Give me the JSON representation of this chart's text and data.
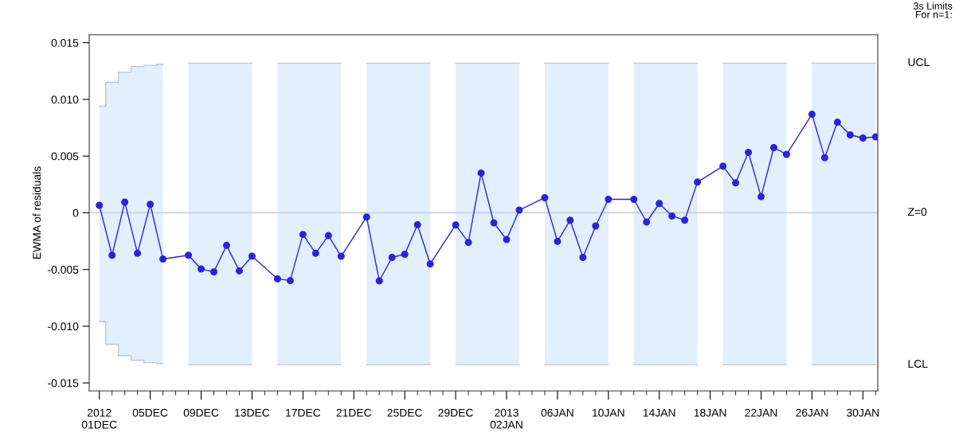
{
  "chart_data": {
    "type": "line",
    "ylabel": "EWMA of residuals",
    "x": [
      "2012-12-01",
      "2012-12-02",
      "2012-12-03",
      "2012-12-04",
      "2012-12-05",
      "2012-12-06",
      "2012-12-08",
      "2012-12-09",
      "2012-12-10",
      "2012-12-11",
      "2012-12-12",
      "2012-12-13",
      "2012-12-15",
      "2012-12-16",
      "2012-12-17",
      "2012-12-18",
      "2012-12-19",
      "2012-12-20",
      "2012-12-22",
      "2012-12-23",
      "2012-12-24",
      "2012-12-25",
      "2012-12-26",
      "2012-12-27",
      "2012-12-29",
      "2012-12-30",
      "2012-12-31",
      "2013-01-01",
      "2013-01-02",
      "2013-01-03",
      "2013-01-05",
      "2013-01-06",
      "2013-01-07",
      "2013-01-08",
      "2013-01-09",
      "2013-01-10",
      "2013-01-12",
      "2013-01-13",
      "2013-01-14",
      "2013-01-15",
      "2013-01-16",
      "2013-01-17",
      "2013-01-19",
      "2013-01-20",
      "2013-01-21",
      "2013-01-22",
      "2013-01-23",
      "2013-01-24",
      "2013-01-26",
      "2013-01-27",
      "2013-01-28",
      "2013-01-29",
      "2013-01-30",
      "2013-01-31"
    ],
    "series": [
      {
        "color": "#2b22e0",
        "values": [
          0.00066,
          -0.00374,
          0.00094,
          -0.00357,
          0.00075,
          -0.00407,
          -0.00374,
          -0.00495,
          -0.00521,
          -0.00287,
          -0.00512,
          -0.00383,
          -0.00582,
          -0.00598,
          -0.00191,
          -0.00357,
          -0.00201,
          -0.00383,
          -0.00037,
          -0.006,
          -0.00393,
          -0.00365,
          -0.00105,
          -0.00451,
          -0.00107,
          -0.00261,
          0.00351,
          -0.00088,
          -0.00236,
          0.00024,
          0.00133,
          -0.00252,
          -0.00065,
          -0.00393,
          -0.00116,
          0.00119,
          0.00119,
          -0.00081,
          0.00082,
          -0.00028,
          -0.00065,
          0.00271,
          0.00411,
          0.00264,
          0.00533,
          0.00143,
          0.00575,
          0.00515,
          0.00869,
          0.00486,
          0.00799,
          0.00687,
          0.00659,
          0.00669
        ],
        "upper": [
          0.0094,
          0.0115,
          0.0124,
          0.0129,
          0.013,
          0.0131,
          0.0132,
          0.0132,
          0.0132,
          0.0132,
          0.0132,
          0.0132,
          0.0132,
          0.0132,
          0.0132,
          0.0132,
          0.0132,
          0.0132,
          0.0132,
          0.0132,
          0.0132,
          0.0132,
          0.0132,
          0.0132,
          0.0132,
          0.0132,
          0.0132,
          0.0132,
          0.0132,
          0.0132,
          0.0132,
          0.0132,
          0.0132,
          0.0132,
          0.0132,
          0.0132,
          0.0132,
          0.0132,
          0.0132,
          0.0132,
          0.0132,
          0.0132,
          0.0132,
          0.0132,
          0.0132,
          0.0132,
          0.0132,
          0.0132,
          0.0132,
          0.0132,
          0.0132,
          0.0132,
          0.0132,
          0.0132
        ],
        "lower": [
          -0.0096,
          -0.0116,
          -0.0126,
          -0.013,
          -0.0132,
          -0.0133,
          -0.0134,
          -0.0134,
          -0.0134,
          -0.0134,
          -0.0134,
          -0.0134,
          -0.0134,
          -0.0134,
          -0.0134,
          -0.0134,
          -0.0134,
          -0.0134,
          -0.0134,
          -0.0134,
          -0.0134,
          -0.0134,
          -0.0134,
          -0.0134,
          -0.0134,
          -0.0134,
          -0.0134,
          -0.0134,
          -0.0134,
          -0.0134,
          -0.0134,
          -0.0134,
          -0.0134,
          -0.0134,
          -0.0134,
          -0.0134,
          -0.0134,
          -0.0134,
          -0.0134,
          -0.0134,
          -0.0134,
          -0.0134,
          -0.0134,
          -0.0134,
          -0.0134,
          -0.0134,
          -0.0134,
          -0.0134,
          -0.0134,
          -0.0134,
          -0.0134,
          -0.0134,
          -0.0134,
          -0.0134
        ]
      },
      {
        "type": "step",
        "marker": "none",
        "color": "#b8c8e0",
        "values": [
          0.0094,
          0.0115,
          0.0124,
          0.0129,
          0.013,
          0.0131,
          0.0132,
          0.0132,
          0.0132,
          0.0132,
          0.0132,
          0.0132,
          0.0132,
          0.0132,
          0.0132,
          0.0132,
          0.0132,
          0.0132,
          0.0132,
          0.0132,
          0.0132,
          0.0132,
          0.0132,
          0.0132,
          0.0132,
          0.0132,
          0.0132,
          0.0132,
          0.0132,
          0.0132,
          0.0132,
          0.0132,
          0.0132,
          0.0132,
          0.0132,
          0.0132,
          0.0132,
          0.0132,
          0.0132,
          0.0132,
          0.0132,
          0.0132,
          0.0132,
          0.0132,
          0.0132,
          0.0132,
          0.0132,
          0.0132,
          0.0132,
          0.0132,
          0.0132,
          0.0132,
          0.0132,
          0.0132
        ]
      },
      {
        "type": "step",
        "marker": "none",
        "color": "#b8c8e0",
        "values": [
          -0.0096,
          -0.0116,
          -0.0126,
          -0.013,
          -0.0132,
          -0.0133,
          -0.0134,
          -0.0134,
          -0.0134,
          -0.0134,
          -0.0134,
          -0.0134,
          -0.0134,
          -0.0134,
          -0.0134,
          -0.0134,
          -0.0134,
          -0.0134,
          -0.0134,
          -0.0134,
          -0.0134,
          -0.0134,
          -0.0134,
          -0.0134,
          -0.0134,
          -0.0134,
          -0.0134,
          -0.0134,
          -0.0134,
          -0.0134,
          -0.0134,
          -0.0134,
          -0.0134,
          -0.0134,
          -0.0134,
          -0.0134,
          -0.0134,
          -0.0134,
          -0.0134,
          -0.0134,
          -0.0134,
          -0.0134,
          -0.0134,
          -0.0134,
          -0.0134,
          -0.0134,
          -0.0134,
          -0.0134,
          -0.0134,
          -0.0134,
          -0.0134,
          -0.0134,
          -0.0134,
          -0.0134
        ]
      }
    ],
    "marker": "circle",
    "line_style": "solid",
    "grid": false,
    "legend": false,
    "ylim": [
      -0.0157,
      0.0157
    ],
    "yticks": [
      0.015,
      {
        "value": 0.01,
        "label": "0.010"
      },
      0.005,
      0,
      -0.005,
      {
        "value": -0.01,
        "label": "-0.010"
      },
      -0.015
    ],
    "xlim": [
      "2012-11-30T05:00",
      "2013-01-31T04:00"
    ],
    "xticks": [
      {
        "value": "2012-12-01",
        "label": "2012\n01DEC"
      },
      {
        "value": "2012-12-02",
        "label": null
      },
      {
        "value": "2012-12-03",
        "label": null
      },
      {
        "value": "2012-12-04",
        "label": null
      },
      {
        "value": "2012-12-05",
        "label": "05DEC"
      },
      {
        "value": "2012-12-06",
        "label": null
      },
      {
        "value": "2012-12-07",
        "label": null
      },
      {
        "value": "2012-12-08",
        "label": null
      },
      {
        "value": "2012-12-09",
        "label": "09DEC"
      },
      {
        "value": "2012-12-10",
        "label": null
      },
      {
        "value": "2012-12-11",
        "label": null
      },
      {
        "value": "2012-12-12",
        "label": null
      },
      {
        "value": "2012-12-13",
        "label": "13DEC"
      },
      {
        "value": "2012-12-14",
        "label": null
      },
      {
        "value": "2012-12-15",
        "label": null
      },
      {
        "value": "2012-12-16",
        "label": null
      },
      {
        "value": "2012-12-17",
        "label": "17DEC"
      },
      {
        "value": "2012-12-18",
        "label": null
      },
      {
        "value": "2012-12-19",
        "label": null
      },
      {
        "value": "2012-12-20",
        "label": null
      },
      {
        "value": "2012-12-21",
        "label": "21DEC"
      },
      {
        "value": "2012-12-22",
        "label": null
      },
      {
        "value": "2012-12-23",
        "label": null
      },
      {
        "value": "2012-12-24",
        "label": null
      },
      {
        "value": "2012-12-25",
        "label": "25DEC"
      },
      {
        "value": "2012-12-26",
        "label": null
      },
      {
        "value": "2012-12-27",
        "label": null
      },
      {
        "value": "2012-12-28",
        "label": null
      },
      {
        "value": "2012-12-29",
        "label": "29DEC"
      },
      {
        "value": "2012-12-30",
        "label": null
      },
      {
        "value": "2012-12-31",
        "label": null
      },
      {
        "value": "2013-01-01",
        "label": null
      },
      {
        "value": "2013-01-02",
        "label": "2013\n02JAN"
      },
      {
        "value": "2013-01-03",
        "label": null
      },
      {
        "value": "2013-01-04",
        "label": null
      },
      {
        "value": "2013-01-05",
        "label": null
      },
      {
        "value": "2013-01-06",
        "label": "06JAN"
      },
      {
        "value": "2013-01-07",
        "label": null
      },
      {
        "value": "2013-01-08",
        "label": null
      },
      {
        "value": "2013-01-09",
        "label": null
      },
      {
        "value": "2013-01-10",
        "label": "10JAN"
      },
      {
        "value": "2013-01-11",
        "label": null
      },
      {
        "value": "2013-01-12",
        "label": null
      },
      {
        "value": "2013-01-13",
        "label": null
      },
      {
        "value": "2013-01-14",
        "label": "14JAN"
      },
      {
        "value": "2013-01-15",
        "label": null
      },
      {
        "value": "2013-01-16",
        "label": null
      },
      {
        "value": "2013-01-17",
        "label": null
      },
      {
        "value": "2013-01-18",
        "label": "18JAN"
      },
      {
        "value": "2013-01-19",
        "label": null
      },
      {
        "value": "2013-01-20",
        "label": null
      },
      {
        "value": "2013-01-21",
        "label": null
      },
      {
        "value": "2013-01-22",
        "label": "22JAN"
      },
      {
        "value": "2013-01-23",
        "label": null
      },
      {
        "value": "2013-01-24",
        "label": null
      },
      {
        "value": "2013-01-25",
        "label": null
      },
      {
        "value": "2013-01-26",
        "label": "26JAN"
      },
      {
        "value": "2013-01-27",
        "label": null
      },
      {
        "value": "2013-01-28",
        "label": null
      },
      {
        "value": "2013-01-29",
        "label": null
      },
      {
        "value": "2013-01-30",
        "label": "30JAN"
      },
      {
        "value": "2013-01-31",
        "label": null
      }
    ],
    "ref_lines": [
      {
        "axis": "y",
        "value": 0,
        "label": "Z=0",
        "color": "#c8d0e0"
      }
    ],
    "annotations": [
      "UCL",
      "LCL",
      "3s Limits\nFor n=1:"
    ]
  }
}
